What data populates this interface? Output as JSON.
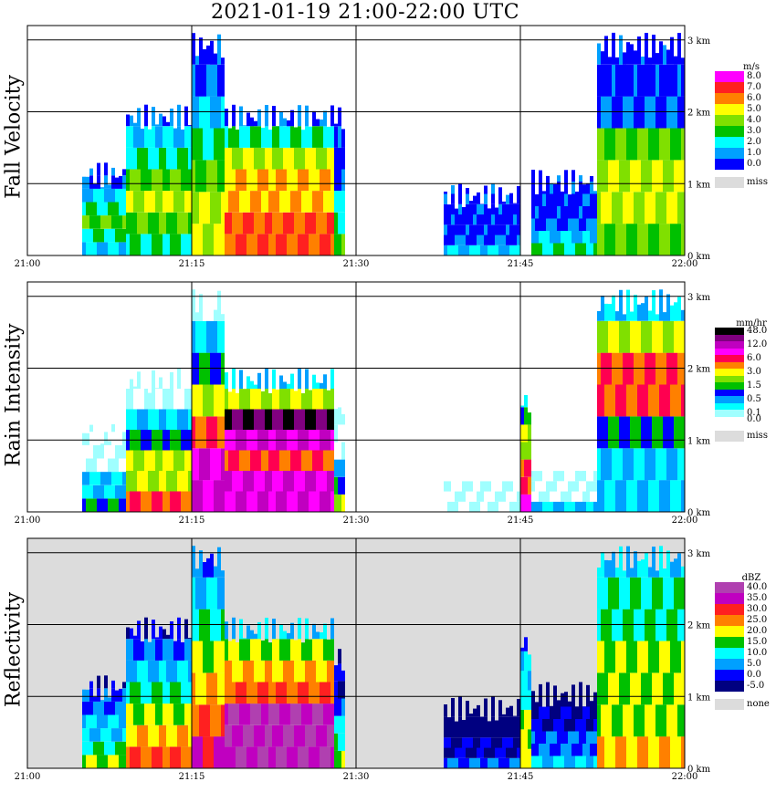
{
  "title": "2021-01-19   21:00-22:00 UTC",
  "x_ticks": [
    "21:00",
    "21:15",
    "21:30",
    "21:45",
    "22:00"
  ],
  "height_ticks": [
    "0 km",
    "1 km",
    "2 km",
    "3 km"
  ],
  "panels": [
    {
      "id": "fall-velocity",
      "ylabel": "Fall Velocity",
      "legend": {
        "unit": "m/s",
        "levels": [
          {
            "label": "8.0",
            "color": "#ff00ff"
          },
          {
            "label": "7.0",
            "color": "#ff2020"
          },
          {
            "label": "6.0",
            "color": "#ff8000"
          },
          {
            "label": "5.0",
            "color": "#ffff00"
          },
          {
            "label": "4.0",
            "color": "#80e000"
          },
          {
            "label": "3.0",
            "color": "#00c000"
          },
          {
            "label": "2.0",
            "color": "#00ffff"
          },
          {
            "label": "1.0",
            "color": "#00a0ff"
          },
          {
            "label": "0.0",
            "color": "#0000ff"
          }
        ],
        "missing": {
          "label": "miss",
          "color": "#dcdcdc"
        }
      }
    },
    {
      "id": "rain-intensity",
      "ylabel": "Rain Intensity",
      "legend": {
        "unit": "mm/hr",
        "levels": [
          {
            "label": "48.0",
            "color": "#000000"
          },
          {
            "label": "",
            "color": "#800080"
          },
          {
            "label": "12.0",
            "color": "#c000c0"
          },
          {
            "label": "",
            "color": "#ff00ff"
          },
          {
            "label": "6.0",
            "color": "#ff0050"
          },
          {
            "label": "",
            "color": "#ff8000"
          },
          {
            "label": "3.0",
            "color": "#ffff00"
          },
          {
            "label": "",
            "color": "#80e000"
          },
          {
            "label": "1.5",
            "color": "#00c000"
          },
          {
            "label": "",
            "color": "#0000ff"
          },
          {
            "label": "0.5",
            "color": "#00a0ff"
          },
          {
            "label": "",
            "color": "#00ffff"
          },
          {
            "label": "0.1",
            "color": "#a0ffff"
          },
          {
            "label": "0.0",
            "color": "#ffffff"
          }
        ],
        "missing": {
          "label": "miss",
          "color": "#dcdcdc"
        }
      }
    },
    {
      "id": "reflectivity",
      "ylabel": "Reflectivity",
      "legend": {
        "unit": "dBZ",
        "levels": [
          {
            "label": "40.0",
            "color": "#b040b0"
          },
          {
            "label": "35.0",
            "color": "#c000c0"
          },
          {
            "label": "30.0",
            "color": "#ff2020"
          },
          {
            "label": "25.0",
            "color": "#ff8000"
          },
          {
            "label": "20.0",
            "color": "#ffff00"
          },
          {
            "label": "15.0",
            "color": "#00c000"
          },
          {
            "label": "10.0",
            "color": "#00ffff"
          },
          {
            "label": "5.0",
            "color": "#00a0ff"
          },
          {
            "label": "0.0",
            "color": "#0000ff"
          },
          {
            "label": "-5.0",
            "color": "#000080"
          }
        ],
        "missing": {
          "label": "none",
          "color": "#dcdcdc"
        }
      }
    }
  ],
  "chart_data": [
    {
      "type": "heatmap",
      "title": "2021-01-19   21:00-22:00 UTC",
      "ylabel": "Fall Velocity",
      "colorbar_unit": "m/s",
      "x_range": [
        "21:00",
        "22:00"
      ],
      "y_range_km": [
        0,
        3.2
      ],
      "grid": true,
      "columns": [
        {
          "start": "21:05",
          "end": "21:09",
          "top_km": 1.3,
          "values": [
            2,
            3,
            4,
            3,
            2,
            1,
            0.5
          ]
        },
        {
          "start": "21:09",
          "end": "21:15",
          "top_km": 2.1,
          "values": [
            3,
            4,
            5,
            4,
            3,
            2,
            1
          ]
        },
        {
          "start": "21:15",
          "end": "21:18",
          "top_km": 3.1,
          "values": [
            5,
            5,
            4,
            3,
            2,
            1,
            0.5
          ]
        },
        {
          "start": "21:18",
          "end": "21:28",
          "top_km": 2.1,
          "values": [
            7,
            7,
            6,
            6,
            5,
            3,
            1
          ]
        },
        {
          "start": "21:28",
          "end": "21:29",
          "top_km": 2.1,
          "values": [
            4,
            3,
            2,
            1,
            0.5,
            0.5,
            0.5
          ]
        },
        {
          "start": "21:38",
          "end": "21:45",
          "top_km": 1.0,
          "values": [
            2,
            1,
            0.5,
            0.5,
            0.5,
            0.5,
            0.5
          ]
        },
        {
          "start": "21:46",
          "end": "21:52",
          "top_km": 1.2,
          "values": [
            3,
            2,
            1,
            0.5,
            0.5,
            0.5,
            0.5
          ]
        },
        {
          "start": "21:52",
          "end": "22:00",
          "top_km": 3.1,
          "values": [
            4,
            5,
            5,
            4,
            1,
            0.5,
            0.5
          ]
        }
      ]
    },
    {
      "type": "heatmap",
      "ylabel": "Rain Intensity",
      "colorbar_unit": "mm/hr",
      "x_range": [
        "21:00",
        "22:00"
      ],
      "y_range_km": [
        0,
        3.2
      ],
      "grid": true,
      "columns": [
        {
          "start": "21:05",
          "end": "21:09",
          "top_km": 1.3,
          "values": [
            1.5,
            0.5,
            0.5,
            0.1,
            0.1,
            0.1,
            0.1
          ]
        },
        {
          "start": "21:09",
          "end": "21:15",
          "top_km": 2.0,
          "values": [
            6,
            3,
            3,
            1.5,
            0.5,
            0.1,
            0.1
          ]
        },
        {
          "start": "21:15",
          "end": "21:18",
          "top_km": 3.1,
          "values": [
            12,
            12,
            6,
            3,
            1.5,
            0.5,
            0.1
          ]
        },
        {
          "start": "21:18",
          "end": "21:28",
          "top_km": 2.0,
          "values": [
            12,
            12,
            6,
            12,
            48,
            3,
            0.5
          ]
        },
        {
          "start": "21:28",
          "end": "21:29",
          "top_km": 1.7,
          "values": [
            3,
            1.5,
            0.5,
            0.1,
            0.1,
            0.1,
            0.1
          ]
        },
        {
          "start": "21:38",
          "end": "21:45",
          "top_km": 1.0,
          "values": [
            0.1,
            0.1,
            0.1,
            0,
            0,
            0,
            0
          ]
        },
        {
          "start": "21:45",
          "end": "21:46",
          "top_km": 1.7,
          "values": [
            12,
            6,
            6,
            3,
            3,
            1.5,
            0.5
          ]
        },
        {
          "start": "21:46",
          "end": "21:52",
          "top_km": 1.0,
          "values": [
            0.5,
            0.1,
            0.1,
            0.1,
            0,
            0,
            0
          ]
        },
        {
          "start": "21:52",
          "end": "22:00",
          "top_km": 3.1,
          "values": [
            0.5,
            0.5,
            1.5,
            6,
            6,
            3,
            0.5
          ]
        }
      ]
    },
    {
      "type": "heatmap",
      "ylabel": "Reflectivity",
      "colorbar_unit": "dBZ",
      "x_range": [
        "21:00",
        "22:00"
      ],
      "y_range_km": [
        0,
        3.2
      ],
      "grid": true,
      "columns": [
        {
          "start": "21:05",
          "end": "21:09",
          "top_km": 1.3,
          "values": [
            20,
            15,
            10,
            10,
            5,
            5,
            0
          ]
        },
        {
          "start": "21:09",
          "end": "21:15",
          "top_km": 2.1,
          "values": [
            30,
            25,
            20,
            15,
            10,
            5,
            0
          ]
        },
        {
          "start": "21:15",
          "end": "21:18",
          "top_km": 3.1,
          "values": [
            35,
            30,
            25,
            20,
            15,
            10,
            5
          ]
        },
        {
          "start": "21:18",
          "end": "21:28",
          "top_km": 2.1,
          "values": [
            40,
            40,
            40,
            30,
            25,
            20,
            10
          ]
        },
        {
          "start": "21:28",
          "end": "21:29",
          "top_km": 1.7,
          "values": [
            20,
            15,
            10,
            5,
            0,
            0,
            0
          ]
        },
        {
          "start": "21:38",
          "end": "21:45",
          "top_km": 1.0,
          "values": [
            5,
            0,
            0,
            -5,
            -5,
            -5,
            -5
          ]
        },
        {
          "start": "21:45",
          "end": "21:46",
          "top_km": 1.9,
          "values": [
            25,
            20,
            20,
            15,
            10,
            10,
            5
          ]
        },
        {
          "start": "21:46",
          "end": "21:52",
          "top_km": 1.2,
          "values": [
            10,
            5,
            5,
            0,
            0,
            -5,
            -5
          ]
        },
        {
          "start": "21:52",
          "end": "22:00",
          "top_km": 3.1,
          "values": [
            25,
            20,
            20,
            20,
            15,
            15,
            10
          ]
        }
      ]
    }
  ]
}
